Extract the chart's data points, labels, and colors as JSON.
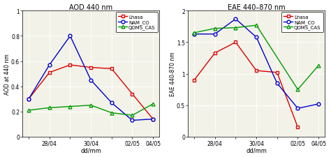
{
  "x_positions": [
    0,
    1,
    2,
    3,
    4,
    5,
    6
  ],
  "x_labels": [
    "",
    "28/04",
    "",
    "30/04",
    "",
    "02/05",
    "04/05"
  ],
  "aod": {
    "title": "AOD 440 nm",
    "ylabel": "AOD at 440 nm",
    "ylim": [
      0,
      1.0
    ],
    "yticks": [
      0,
      0.2,
      0.4,
      0.6,
      0.8,
      1.0
    ],
    "ytick_labels": [
      "0",
      "0.2",
      "0.4",
      "0.6",
      "0.8",
      "1"
    ],
    "lhasa": [
      0.3,
      0.51,
      0.57,
      0.55,
      0.54,
      0.34,
      0.14
    ],
    "nam_co": [
      0.3,
      0.57,
      0.8,
      0.45,
      0.27,
      0.13,
      0.14
    ],
    "qoms_cas": [
      0.21,
      0.23,
      0.24,
      0.25,
      0.19,
      0.17,
      0.26
    ]
  },
  "eae": {
    "title": "EAE 440–870 nm",
    "ylabel": "EAE 440-870 nm",
    "ylim": [
      0,
      2.0
    ],
    "yticks": [
      0,
      0.5,
      1.0,
      1.5,
      2.0
    ],
    "ytick_labels": [
      "0",
      "0.5",
      "1",
      "1.5",
      "2"
    ],
    "lhasa": [
      0.9,
      1.33,
      1.5,
      1.05,
      1.02,
      0.15,
      null
    ],
    "nam_co": [
      1.63,
      1.63,
      1.87,
      1.58,
      0.85,
      0.45,
      0.52
    ],
    "qoms_cas": [
      1.65,
      1.72,
      1.73,
      1.77,
      null,
      0.75,
      1.13
    ]
  },
  "colors": {
    "lhasa": "#dd0000",
    "nam_co": "#0000cc",
    "qoms_cas": "#009900"
  },
  "xlabel": "dd/mm",
  "bg_color": "#f2f2e8",
  "grid_color": "#ffffff",
  "fig_width": 4.74,
  "fig_height": 2.26,
  "dpi": 100
}
